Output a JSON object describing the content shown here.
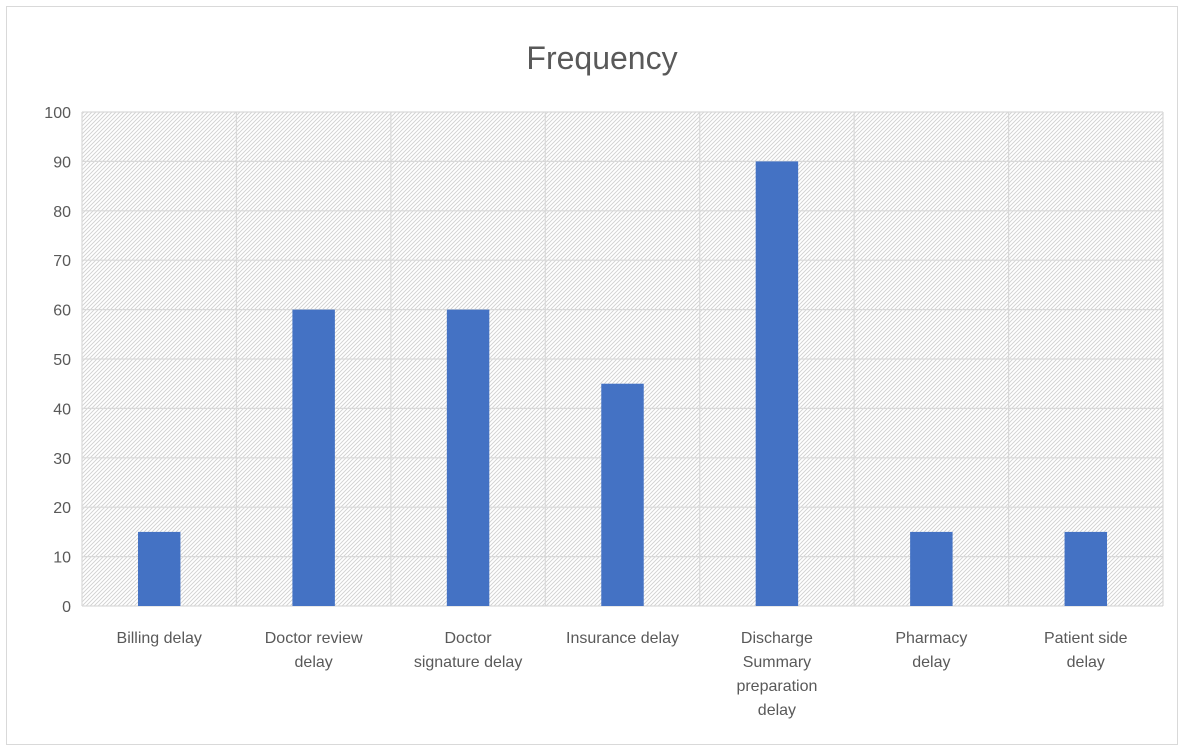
{
  "chart_data": {
    "type": "bar",
    "title": "Frequency",
    "xlabel": "",
    "ylabel": "",
    "ylim": [
      0,
      100
    ],
    "yticks": [
      0,
      10,
      20,
      30,
      40,
      50,
      60,
      70,
      80,
      90,
      100
    ],
    "categories": [
      [
        "Billing delay"
      ],
      [
        "Doctor review",
        "delay"
      ],
      [
        "Doctor",
        "signature delay"
      ],
      [
        "Insurance delay"
      ],
      [
        "Discharge",
        "Summary",
        "preparation",
        "delay"
      ],
      [
        "Pharmacy",
        "delay"
      ],
      [
        "Patient side",
        "delay"
      ]
    ],
    "values": [
      15,
      60,
      60,
      45,
      90,
      15,
      15
    ],
    "bar_color": "#4472c4",
    "gridlines": true,
    "legend": "none"
  }
}
